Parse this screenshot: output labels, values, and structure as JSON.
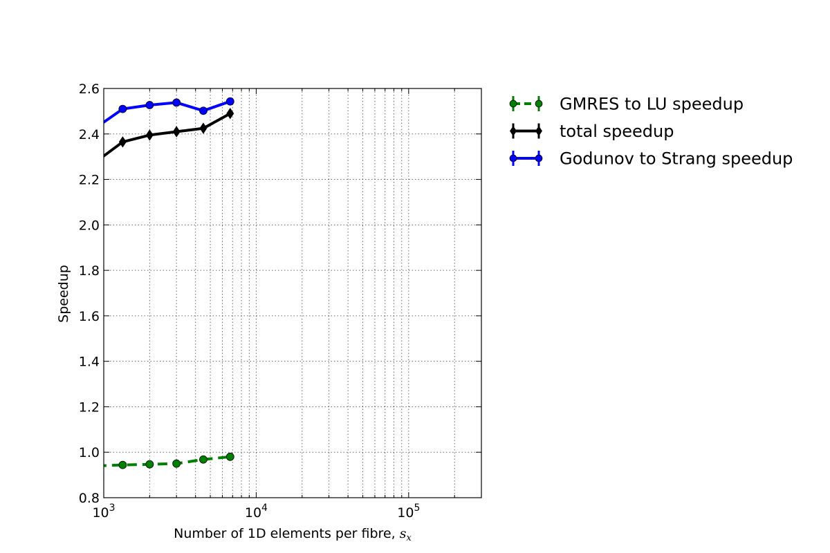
{
  "chart_data": {
    "type": "line",
    "xlabel": "Number of 1D elements per fibre, ",
    "xlabel_math": "s",
    "xlabel_math_sub": "x",
    "ylabel": "Speedup",
    "xscale": "log",
    "xlim": [
      1000,
      300000
    ],
    "ylim": [
      0.8,
      2.6
    ],
    "x_ticks": [
      {
        "value": 1000,
        "base": "10",
        "exp": "3"
      },
      {
        "value": 10000,
        "base": "10",
        "exp": "4"
      },
      {
        "value": 100000,
        "base": "10",
        "exp": "5"
      }
    ],
    "y_ticks": [
      "0.8",
      "1.0",
      "1.2",
      "1.4",
      "1.6",
      "1.8",
      "2.0",
      "2.2",
      "2.4",
      "2.6"
    ],
    "grid": true,
    "legend_position": "outside-right",
    "series": [
      {
        "name": "GMRES to LU speedup",
        "color": "#008000",
        "style": "dashed",
        "marker": "circle",
        "points": [
          [
            900,
            0.94
          ],
          [
            1331,
            0.944
          ],
          [
            2000,
            0.947
          ],
          [
            3000,
            0.95
          ],
          [
            4500,
            0.968
          ],
          [
            6750,
            0.98
          ]
        ]
      },
      {
        "name": "total speedup",
        "color": "#000000",
        "style": "solid",
        "marker": "diamond",
        "points": [
          [
            900,
            2.28
          ],
          [
            1331,
            2.365
          ],
          [
            2000,
            2.395
          ],
          [
            3000,
            2.41
          ],
          [
            4500,
            2.425
          ],
          [
            6750,
            2.49
          ]
        ]
      },
      {
        "name": "Godunov to Strang speedup",
        "color": "#0000ff",
        "style": "solid",
        "marker": "circle",
        "points": [
          [
            900,
            2.43
          ],
          [
            1331,
            2.51
          ],
          [
            2000,
            2.527
          ],
          [
            3000,
            2.538
          ],
          [
            4500,
            2.502
          ],
          [
            6750,
            2.543
          ]
        ]
      }
    ]
  }
}
